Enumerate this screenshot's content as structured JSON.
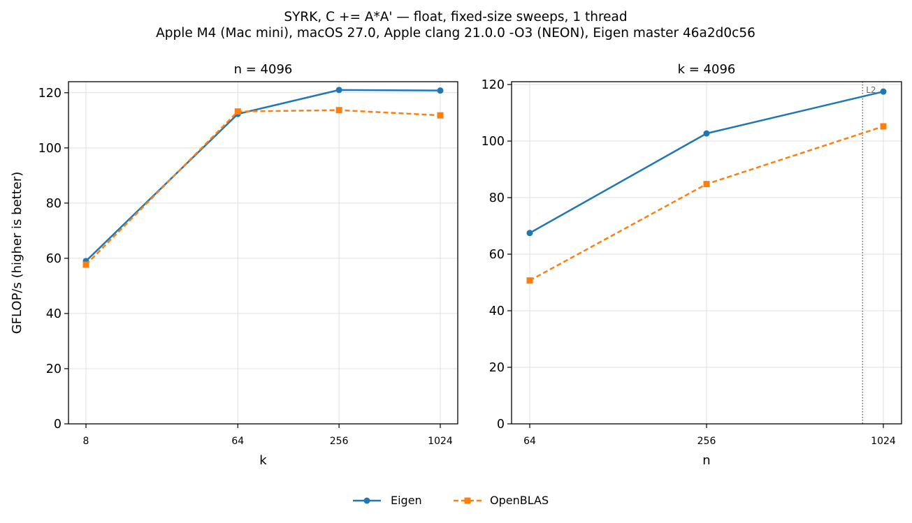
{
  "title": {
    "line1": "SYRK, C += A*A' — float, fixed-size sweeps, 1 thread",
    "line2": "Apple M4 (Mac mini), macOS 27.0, Apple clang 21.0.0 -O3 (NEON), Eigen master 46a2d0c56"
  },
  "legend": {
    "position": "bottom-center",
    "items": [
      {
        "label": "Eigen",
        "color": "#1f77b4",
        "marker": "circle",
        "line": "solid"
      },
      {
        "label": "OpenBLAS",
        "color": "#ff7f0e",
        "marker": "square",
        "line": "dashed"
      }
    ]
  },
  "chart_data": [
    {
      "type": "line",
      "title": "n = 4096",
      "xlabel": "k",
      "ylabel": "GFLOP/s (higher is better)",
      "x_scale": "log2",
      "x": [
        8,
        64,
        256,
        1024
      ],
      "x_tick_labels": [
        "8",
        "64",
        "256",
        "1024"
      ],
      "ylim": [
        0,
        124
      ],
      "y_ticks": [
        0,
        20,
        40,
        60,
        80,
        100,
        120
      ],
      "grid": true,
      "series": [
        {
          "name": "Eigen",
          "values": [
            59.0,
            112.3,
            121.0,
            120.8
          ]
        },
        {
          "name": "OpenBLAS",
          "values": [
            57.7,
            113.2,
            113.7,
            111.8
          ]
        }
      ]
    },
    {
      "type": "line",
      "title": "k = 4096",
      "xlabel": "n",
      "ylabel": "",
      "x_scale": "log2",
      "x": [
        64,
        256,
        1024
      ],
      "x_tick_labels": [
        "64",
        "256",
        "1024"
      ],
      "ylim": [
        0,
        121
      ],
      "y_ticks": [
        0,
        20,
        40,
        60,
        80,
        100,
        120
      ],
      "grid": true,
      "annotations": [
        {
          "type": "vline",
          "x": 870,
          "label": "L2",
          "style": "dotted"
        }
      ],
      "series": [
        {
          "name": "Eigen",
          "values": [
            67.5,
            102.7,
            117.5
          ]
        },
        {
          "name": "OpenBLAS",
          "values": [
            50.7,
            84.8,
            105.2
          ]
        }
      ]
    }
  ]
}
